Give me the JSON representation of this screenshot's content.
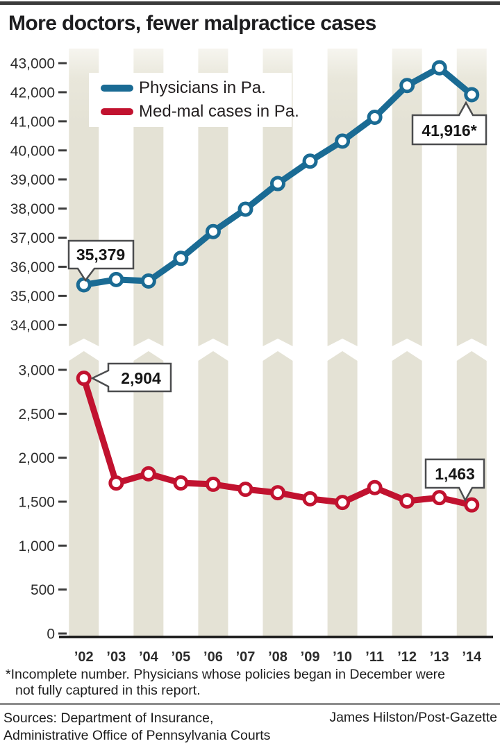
{
  "header": {
    "title": "More doctors, fewer malpractice cases",
    "rule_color": "#3b3b3b"
  },
  "legend": {
    "items": [
      {
        "label": "Physicians in Pa.",
        "color": "#1a6b94"
      },
      {
        "label": "Med-mal cases in Pa.",
        "color": "#c1122f"
      }
    ]
  },
  "chart_data": {
    "type": "line",
    "x": [
      "’02",
      "’03",
      "’04",
      "’05",
      "’06",
      "’07",
      "’08",
      "’09",
      "’10",
      "’11",
      "’12",
      "’13",
      "’14"
    ],
    "series": [
      {
        "name": "Physicians in Pa.",
        "color": "#1a6b94",
        "axis": "top",
        "values": [
          35379,
          35560,
          35510,
          36290,
          37210,
          37980,
          38860,
          39630,
          40320,
          41140,
          42230,
          42840,
          41916
        ]
      },
      {
        "name": "Med-mal cases in Pa.",
        "color": "#c1122f",
        "axis": "bottom",
        "values": [
          2904,
          1712,
          1817,
          1713,
          1698,
          1641,
          1602,
          1533,
          1491,
          1660,
          1508,
          1546,
          1463
        ]
      }
    ],
    "top_axis": {
      "min": 34000,
      "max": 43000,
      "tick_values": [
        43000,
        42000,
        41000,
        40000,
        39000,
        38000,
        37000,
        36000,
        35000,
        34000
      ],
      "tick_labels": [
        "43,000",
        "42,000",
        "41,000",
        "40,000",
        "39,000",
        "38,000",
        "37,000",
        "36,000",
        "35,000",
        "34,000"
      ]
    },
    "bottom_axis": {
      "min": 0,
      "max": 3000,
      "tick_values": [
        3000,
        2500,
        2000,
        1500,
        1000,
        500,
        0
      ],
      "tick_labels": [
        "3,000",
        "2,500",
        "2,000",
        "1,500",
        "1,000",
        "500",
        "0"
      ]
    },
    "annotations": [
      {
        "text": "35,379",
        "series": 0,
        "point": 0
      },
      {
        "text": "41,916*",
        "series": 0,
        "point": 12
      },
      {
        "text": "2,904",
        "series": 1,
        "point": 0
      },
      {
        "text": "1,463",
        "series": 1,
        "point": 12
      }
    ],
    "legend_position": "top-left",
    "grid": "vertical-stripes-broken-axis",
    "stripe_color": "#e4e2d5"
  },
  "footnote": {
    "lines": [
      "*Incomplete number. Physicians whose policies began in December were",
      "not fully captured in this report."
    ]
  },
  "footer": {
    "sources_lines": [
      "Sources: Department of Insurance,",
      "Administrative Office of Pennsylvania Courts"
    ],
    "credit": "James Hilston/Post-Gazette"
  }
}
